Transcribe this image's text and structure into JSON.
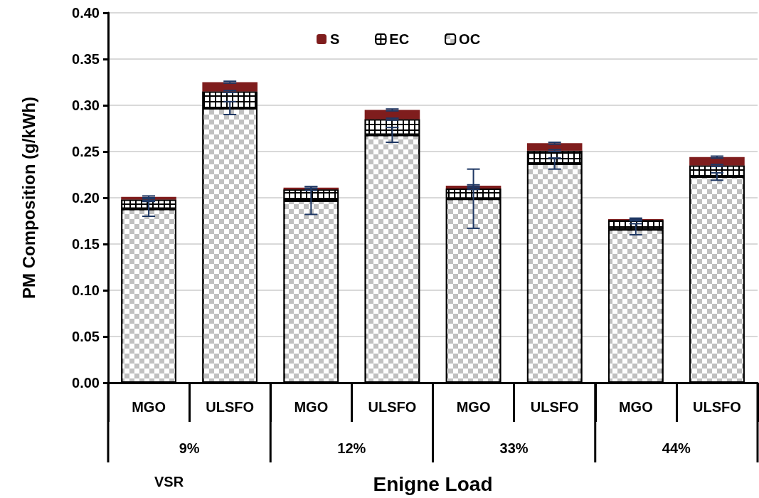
{
  "chart_data": {
    "type": "bar",
    "stacked": true,
    "categories": [
      "MGO",
      "ULSFO",
      "MGO",
      "ULSFO",
      "MGO",
      "ULSFO",
      "MGO",
      "ULSFO"
    ],
    "series": [
      {
        "name": "OC",
        "color": "#c0c0c0",
        "values": [
          0.188,
          0.297,
          0.197,
          0.268,
          0.199,
          0.237,
          0.166,
          0.223
        ],
        "errors": [
          0.008,
          0.007,
          0.015,
          0.008,
          0.032,
          0.006,
          0.006,
          0.004
        ]
      },
      {
        "name": "EC",
        "color": "#000000",
        "values": [
          0.01,
          0.018,
          0.012,
          0.017,
          0.011,
          0.014,
          0.01,
          0.012
        ],
        "errors": [
          0.001,
          0.001,
          0.001,
          0.001,
          0.001,
          0.001,
          0.001,
          0.001
        ]
      },
      {
        "name": "S",
        "color": "#7f1d1d",
        "values": [
          0.003,
          0.01,
          0.002,
          0.01,
          0.003,
          0.008,
          0.001,
          0.009
        ],
        "errors": [
          0.001,
          0.001,
          0.001,
          0.001,
          0.001,
          0.001,
          0.001,
          0.001
        ]
      }
    ],
    "ylabel": "PM Composition (g/kWh)",
    "xlabel": "Enigne Load",
    "annotations": [
      "9%",
      "12%",
      "33%",
      "44%",
      "VSR"
    ],
    "ylim": [
      0,
      0.4
    ],
    "yticks": [
      {
        "value": 0,
        "label": "0.00"
      },
      {
        "value": 0.05,
        "label": "0.05"
      },
      {
        "value": 0.1,
        "label": "0.10"
      },
      {
        "value": 0.15,
        "label": "0.15"
      },
      {
        "value": 0.2,
        "label": "0.20"
      },
      {
        "value": 0.25,
        "label": "0.25"
      },
      {
        "value": 0.3,
        "label": "0.30"
      },
      {
        "value": 0.35,
        "label": "0.35"
      },
      {
        "value": 0.4,
        "label": "0.40"
      }
    ],
    "grid": "y",
    "legend": "top"
  }
}
